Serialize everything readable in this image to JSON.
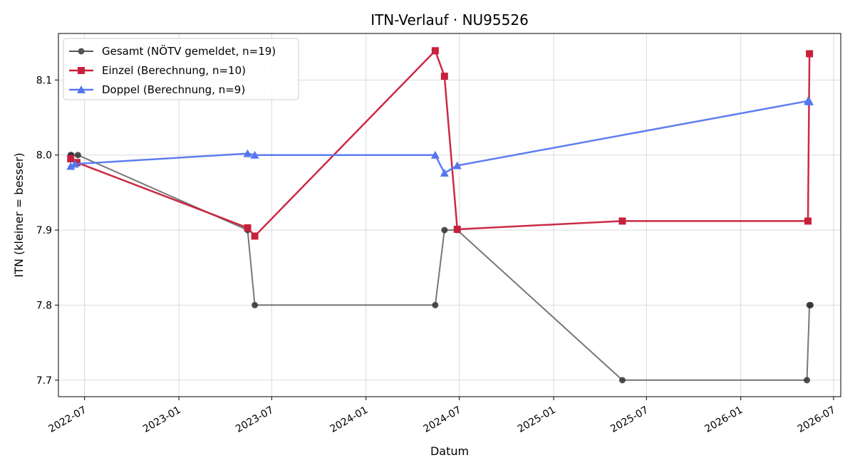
{
  "chart_data": {
    "type": "line",
    "title": "ITN-Verlauf · NU95526",
    "xlabel": "Datum",
    "ylabel": "ITN  (kleiner = besser)",
    "xlim": [
      "2022-05-11",
      "2026-07-15"
    ],
    "ylim": [
      7.678,
      8.162
    ],
    "x_ticks": [
      "2022-07-01",
      "2023-01-01",
      "2023-07-01",
      "2024-01-01",
      "2024-07-01",
      "2025-01-01",
      "2025-07-01",
      "2026-01-01",
      "2026-07-01"
    ],
    "x_tick_labels": [
      "2022-07",
      "2023-01",
      "2023-07",
      "2024-01",
      "2024-07",
      "2025-01",
      "2025-07",
      "2026-01",
      "2026-07"
    ],
    "y_ticks": [
      7.7,
      7.8,
      7.9,
      8.0,
      8.1
    ],
    "y_tick_labels": [
      "7.7",
      "7.8",
      "7.9",
      "8.0",
      "8.1"
    ],
    "grid": true,
    "legend_position": "top-left",
    "series": [
      {
        "name": "Gesamt (NÖTV gemeldet, n=19)",
        "color": "#555555",
        "marker": "circle",
        "points": [
          {
            "x": "2022-06-04",
            "y": 8.0
          },
          {
            "x": "2022-06-05",
            "y": 8.0
          },
          {
            "x": "2022-06-18",
            "y": 8.0
          },
          {
            "x": "2023-05-15",
            "y": 7.9
          },
          {
            "x": "2023-05-29",
            "y": 7.8
          },
          {
            "x": "2024-05-15",
            "y": 7.8
          },
          {
            "x": "2024-06-02",
            "y": 7.9
          },
          {
            "x": "2024-06-27",
            "y": 7.9
          },
          {
            "x": "2025-05-15",
            "y": 7.7
          },
          {
            "x": "2026-05-10",
            "y": 7.7
          },
          {
            "x": "2026-05-15",
            "y": 7.8
          },
          {
            "x": "2026-05-17",
            "y": 7.8
          }
        ]
      },
      {
        "name": "Einzel (Berechnung, n=10)",
        "color": "#c8203c",
        "marker": "square",
        "points": [
          {
            "x": "2022-06-04",
            "y": 7.995
          },
          {
            "x": "2022-06-16",
            "y": 7.99
          },
          {
            "x": "2023-05-15",
            "y": 7.903
          },
          {
            "x": "2023-05-29",
            "y": 7.892
          },
          {
            "x": "2024-05-15",
            "y": 8.139
          },
          {
            "x": "2024-06-02",
            "y": 8.105
          },
          {
            "x": "2024-06-27",
            "y": 7.901
          },
          {
            "x": "2025-05-15",
            "y": 7.912
          },
          {
            "x": "2026-05-12",
            "y": 7.912
          },
          {
            "x": "2026-05-15",
            "y": 8.135
          }
        ]
      },
      {
        "name": "Doppel (Berechnung, n=9)",
        "color": "#5577ee",
        "marker": "triangle",
        "points": [
          {
            "x": "2022-06-04",
            "y": 7.985
          },
          {
            "x": "2022-06-12",
            "y": 7.988
          },
          {
            "x": "2023-05-15",
            "y": 8.002
          },
          {
            "x": "2023-05-29",
            "y": 8.0
          },
          {
            "x": "2024-05-15",
            "y": 8.0
          },
          {
            "x": "2024-06-02",
            "y": 7.976
          },
          {
            "x": "2024-06-27",
            "y": 7.986
          },
          {
            "x": "2026-05-12",
            "y": 8.072
          },
          {
            "x": "2026-05-15",
            "y": 8.071
          }
        ]
      }
    ]
  }
}
